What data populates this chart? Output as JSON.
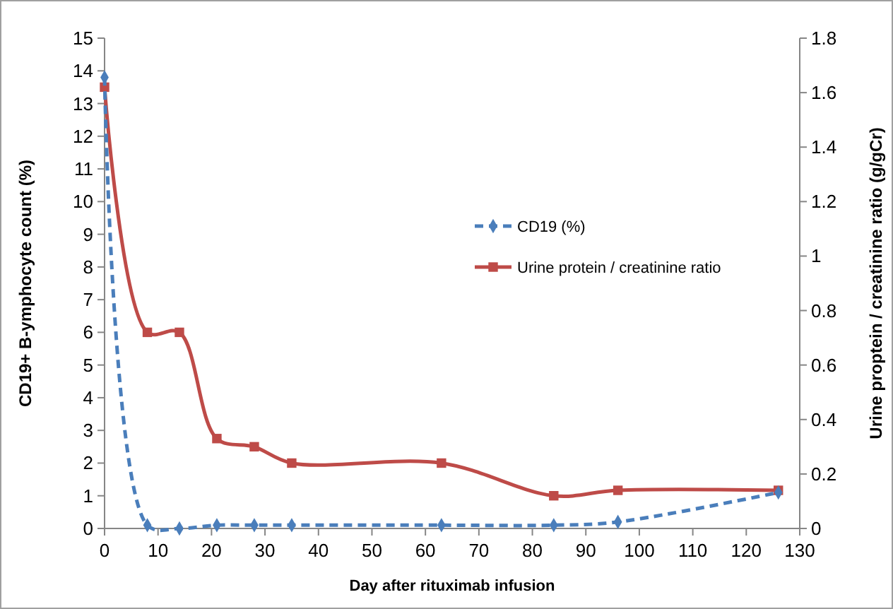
{
  "chart_data": {
    "type": "line",
    "xlabel": "Day after rituximab infusion",
    "ylabel": "CD19+ B-ymphocyte count (%)",
    "y2label": "Urine proptein / creatinine ratio (g/gCr)",
    "x": [
      0,
      8,
      14,
      21,
      28,
      35,
      63,
      84,
      96,
      126
    ],
    "xlim": [
      0,
      130
    ],
    "xticks": [
      0,
      10,
      20,
      30,
      40,
      50,
      60,
      70,
      80,
      90,
      100,
      110,
      120,
      130
    ],
    "ylim": [
      0,
      15
    ],
    "yticks": [
      0,
      1,
      2,
      3,
      4,
      5,
      6,
      7,
      8,
      9,
      10,
      11,
      12,
      13,
      14,
      15
    ],
    "y2lim": [
      0,
      1.8
    ],
    "y2ticks": [
      0,
      {
        "value": 0.2,
        "label": "0.2"
      },
      {
        "value": 0.4,
        "label": "0.4"
      },
      {
        "value": 0.6,
        "label": "0.6"
      },
      {
        "value": 0.8,
        "label": "0.8"
      },
      1,
      {
        "value": 1.2,
        "label": "1.2"
      },
      {
        "value": 1.4,
        "label": "1.4"
      },
      {
        "value": 1.6,
        "label": "1.6"
      },
      {
        "value": 1.8,
        "label": "1.8"
      }
    ],
    "grid": false,
    "legend": "right",
    "series": [
      {
        "name": "CD19 (%)",
        "color": "#4a7ebb",
        "marker": "diamond",
        "line_style": "dashed",
        "values": [
          13.8,
          0.1,
          0,
          0.1,
          0.1,
          0.1,
          0.1,
          0.1,
          0.2,
          1.1
        ]
      },
      {
        "name": "Urine protein / creatinine ratio",
        "color": "#be4b48",
        "marker": "square",
        "line_style": "solid",
        "axis": "y2",
        "values": [
          1.62,
          0.72,
          0.72,
          0.33,
          0.3,
          0.24,
          0.24,
          0.12,
          0.14,
          0.14
        ]
      }
    ]
  }
}
